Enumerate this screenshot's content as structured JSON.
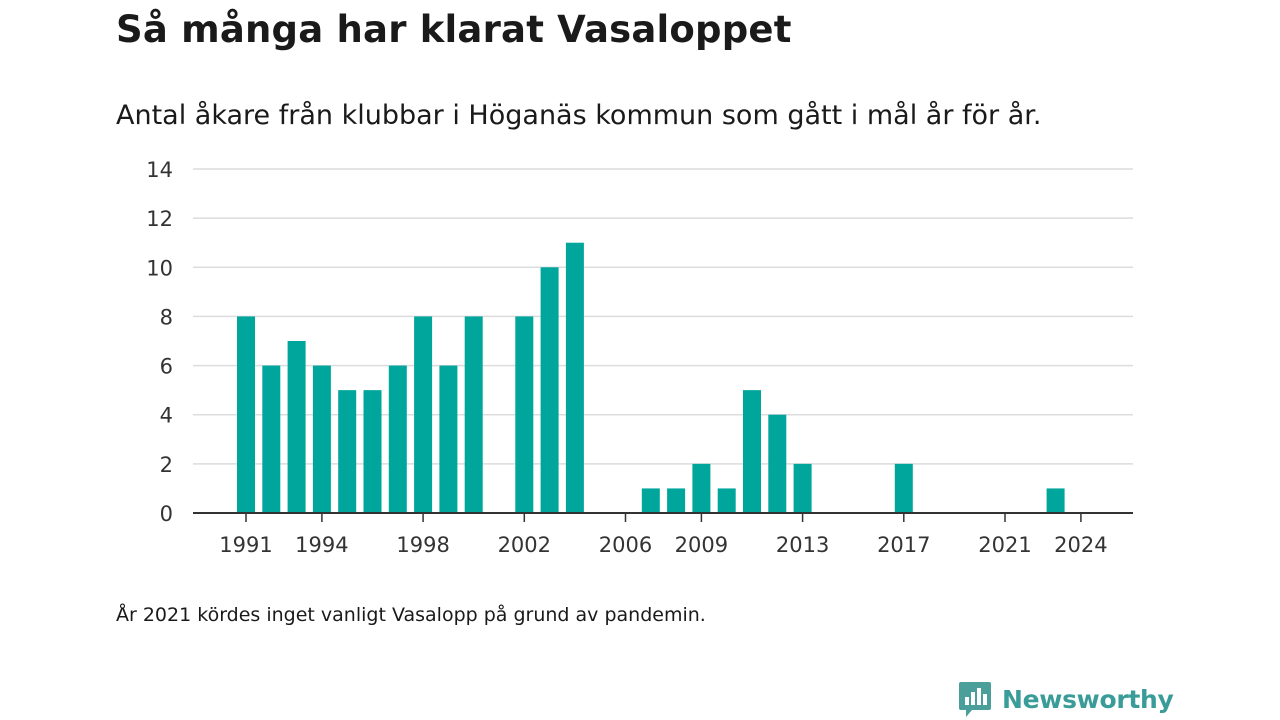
{
  "header": {
    "title": "Så många har klarat Vasaloppet",
    "subtitle": "Antal åkare från klubbar i Höganäs kommun som gått i mål år för år."
  },
  "footer": {
    "note": "År 2021 kördes inget vanligt Vasalopp på grund av pandemin.",
    "brand": "Newsworthy",
    "brand_icon": "newsworthy-logo-icon"
  },
  "colors": {
    "bar": "#00a69c",
    "grid": "#dcdcdc",
    "axis": "#333333",
    "brand": "#3a9c98"
  },
  "chart_data": {
    "type": "bar",
    "x": [
      1991,
      1992,
      1993,
      1994,
      1995,
      1996,
      1997,
      1998,
      1999,
      2000,
      2001,
      2002,
      2003,
      2004,
      2005,
      2006,
      2007,
      2008,
      2009,
      2010,
      2011,
      2012,
      2013,
      2014,
      2015,
      2016,
      2017,
      2018,
      2019,
      2020,
      2021,
      2022,
      2023,
      2024
    ],
    "values": [
      8,
      6,
      7,
      6,
      5,
      5,
      6,
      8,
      6,
      8,
      0,
      8,
      10,
      11,
      0,
      0,
      1,
      1,
      2,
      1,
      5,
      4,
      2,
      0,
      0,
      0,
      2,
      0,
      0,
      0,
      0,
      0,
      1,
      0
    ],
    "x_ticks": [
      1991,
      1994,
      1998,
      2002,
      2006,
      2009,
      2013,
      2017,
      2021,
      2024
    ],
    "y_ticks": [
      0,
      2,
      4,
      6,
      8,
      10,
      12,
      14
    ],
    "ylim": [
      0,
      14
    ],
    "grid": true,
    "xlabel": "",
    "ylabel": ""
  }
}
